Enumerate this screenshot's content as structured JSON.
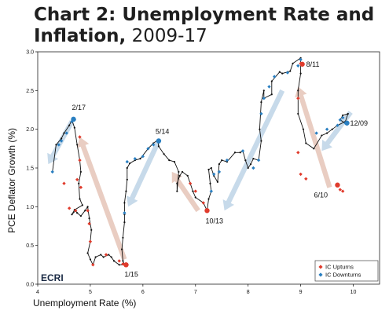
{
  "title_main": "Chart 2: Unemployment Rate and Inflation,",
  "title_years": " 2009-17",
  "chart_data": {
    "type": "line",
    "title": "Chart 2: Unemployment Rate and Inflation, 2009-17",
    "xlabel": "Unemployment Rate (%)",
    "ylabel": "PCE Deflator Growth (%)",
    "xlim": [
      4,
      10.5
    ],
    "ylim": [
      0,
      3
    ],
    "xticks": [
      "4",
      "5",
      "6",
      "7",
      "8",
      "9",
      "10"
    ],
    "yticks": [
      "0.0",
      "0.5",
      "1.0",
      "1.5",
      "2.0",
      "2.5",
      "3.0"
    ],
    "logo": "ECRI",
    "path": [
      [
        9.85,
        2.08
      ],
      [
        9.75,
        2.12
      ],
      [
        9.8,
        2.18
      ],
      [
        9.9,
        2.2
      ],
      [
        9.85,
        2.1
      ],
      [
        9.7,
        2.05
      ],
      [
        9.6,
        2.0
      ],
      [
        9.5,
        1.95
      ],
      [
        9.4,
        1.92
      ],
      [
        9.25,
        1.75
      ],
      [
        9.1,
        1.82
      ],
      [
        9.05,
        2.0
      ],
      [
        8.95,
        2.2
      ],
      [
        8.95,
        2.5
      ],
      [
        9.0,
        2.72
      ],
      [
        9.0,
        2.92
      ],
      [
        8.85,
        2.85
      ],
      [
        8.8,
        2.75
      ],
      [
        8.75,
        2.74
      ],
      [
        8.65,
        2.72
      ],
      [
        8.6,
        2.74
      ],
      [
        8.45,
        2.62
      ],
      [
        8.45,
        2.45
      ],
      [
        8.3,
        2.4
      ],
      [
        8.3,
        2.5
      ],
      [
        8.25,
        2.35
      ],
      [
        8.22,
        2.0
      ],
      [
        8.25,
        1.85
      ],
      [
        8.2,
        1.6
      ],
      [
        8.1,
        1.62
      ],
      [
        8.05,
        1.55
      ],
      [
        8.0,
        1.5
      ],
      [
        7.95,
        1.6
      ],
      [
        7.9,
        1.72
      ],
      [
        7.85,
        1.7
      ],
      [
        7.75,
        1.7
      ],
      [
        7.6,
        1.58
      ],
      [
        7.5,
        1.6
      ],
      [
        7.45,
        1.55
      ],
      [
        7.42,
        1.32
      ],
      [
        7.35,
        1.4
      ],
      [
        7.3,
        1.5
      ],
      [
        7.25,
        1.48
      ],
      [
        7.28,
        1.3
      ],
      [
        7.3,
        1.2
      ],
      [
        7.25,
        1.1
      ],
      [
        7.22,
        0.95
      ],
      [
        7.15,
        1.05
      ],
      [
        7.0,
        1.12
      ],
      [
        6.95,
        1.2
      ],
      [
        6.9,
        1.3
      ],
      [
        6.85,
        1.4
      ],
      [
        6.75,
        1.45
      ],
      [
        6.7,
        1.4
      ],
      [
        6.65,
        1.3
      ],
      [
        6.65,
        1.2
      ],
      [
        6.68,
        1.45
      ],
      [
        6.6,
        1.58
      ],
      [
        6.5,
        1.6
      ],
      [
        6.4,
        1.68
      ],
      [
        6.3,
        1.78
      ],
      [
        6.28,
        1.86
      ],
      [
        6.2,
        1.82
      ],
      [
        6.1,
        1.75
      ],
      [
        5.95,
        1.62
      ],
      [
        5.85,
        1.6
      ],
      [
        5.75,
        1.56
      ],
      [
        5.7,
        1.5
      ],
      [
        5.7,
        1.35
      ],
      [
        5.68,
        1.2
      ],
      [
        5.65,
        1.05
      ],
      [
        5.65,
        0.9
      ],
      [
        5.65,
        0.8
      ],
      [
        5.62,
        0.6
      ],
      [
        5.6,
        0.45
      ],
      [
        5.62,
        0.3
      ],
      [
        5.65,
        0.25
      ],
      [
        5.55,
        0.25
      ],
      [
        5.45,
        0.3
      ],
      [
        5.4,
        0.35
      ],
      [
        5.35,
        0.38
      ],
      [
        5.25,
        0.35
      ],
      [
        5.2,
        0.38
      ],
      [
        5.1,
        0.35
      ],
      [
        5.05,
        0.25
      ],
      [
        5.0,
        0.32
      ],
      [
        4.95,
        0.4
      ],
      [
        5.0,
        0.55
      ],
      [
        5.02,
        0.7
      ],
      [
        4.98,
        0.85
      ],
      [
        4.95,
        1.0
      ],
      [
        4.9,
        0.95
      ],
      [
        4.82,
        0.88
      ],
      [
        4.75,
        0.92
      ],
      [
        4.72,
        0.95
      ],
      [
        4.65,
        0.9
      ],
      [
        4.7,
        0.96
      ],
      [
        4.85,
        1.02
      ],
      [
        4.8,
        1.1
      ],
      [
        4.78,
        1.3
      ],
      [
        4.82,
        1.45
      ],
      [
        4.8,
        1.6
      ],
      [
        4.75,
        1.8
      ],
      [
        4.7,
        2.02
      ],
      [
        4.65,
        2.12
      ],
      [
        4.6,
        2.05
      ],
      [
        4.5,
        1.95
      ],
      [
        4.45,
        1.88
      ],
      [
        4.35,
        1.8
      ],
      [
        4.28,
        1.45
      ]
    ],
    "upturns": [
      [
        9.8,
        1.2
      ],
      [
        9.75,
        1.22
      ],
      [
        9.1,
        1.36
      ],
      [
        9.0,
        1.42
      ],
      [
        8.95,
        1.7
      ],
      [
        8.95,
        2.4
      ],
      [
        9.0,
        2.85
      ],
      [
        7.22,
        0.95
      ],
      [
        7.15,
        1.05
      ],
      [
        7.0,
        1.2
      ],
      [
        6.9,
        1.3
      ],
      [
        5.7,
        0.25
      ],
      [
        5.62,
        0.26
      ],
      [
        5.55,
        0.3
      ],
      [
        5.3,
        0.38
      ],
      [
        5.05,
        0.25
      ],
      [
        5.0,
        0.55
      ],
      [
        4.98,
        0.78
      ],
      [
        4.95,
        0.95
      ],
      [
        4.82,
        1.25
      ],
      [
        4.8,
        1.6
      ],
      [
        4.75,
        1.35
      ],
      [
        4.72,
        0.95
      ],
      [
        4.6,
        0.98
      ],
      [
        4.5,
        1.3
      ],
      [
        4.8,
        1.9
      ]
    ],
    "downturns": [
      [
        9.85,
        2.08
      ],
      [
        9.8,
        2.15
      ],
      [
        9.75,
        2.12
      ],
      [
        9.7,
        2.05
      ],
      [
        9.5,
        2.0
      ],
      [
        9.3,
        1.95
      ],
      [
        9.0,
        2.9
      ],
      [
        8.95,
        2.82
      ],
      [
        8.75,
        2.73
      ],
      [
        8.5,
        2.68
      ],
      [
        8.4,
        2.55
      ],
      [
        8.3,
        2.4
      ],
      [
        8.25,
        2.2
      ],
      [
        8.2,
        1.6
      ],
      [
        8.1,
        1.5
      ],
      [
        7.9,
        1.72
      ],
      [
        7.6,
        1.6
      ],
      [
        7.45,
        1.45
      ],
      [
        7.35,
        1.42
      ],
      [
        7.3,
        1.2
      ],
      [
        6.3,
        1.85
      ],
      [
        6.2,
        1.8
      ],
      [
        6.1,
        1.75
      ],
      [
        6.0,
        1.65
      ],
      [
        5.85,
        1.62
      ],
      [
        5.7,
        1.58
      ],
      [
        5.65,
        0.92
      ],
      [
        4.7,
        2.12
      ],
      [
        4.65,
        2.1
      ],
      [
        4.55,
        1.95
      ],
      [
        4.45,
        1.85
      ],
      [
        4.4,
        1.8
      ],
      [
        4.28,
        1.45
      ]
    ],
    "annotations": [
      {
        "label": "2/17",
        "x": 4.68,
        "y": 2.13
      },
      {
        "label": "5/14",
        "x": 6.3,
        "y": 1.85
      },
      {
        "label": "8/11",
        "x": 9.03,
        "y": 2.84
      },
      {
        "label": "12/09",
        "x": 9.88,
        "y": 2.08
      },
      {
        "label": "6/10",
        "x": 9.7,
        "y": 1.28
      },
      {
        "label": "10/13",
        "x": 7.22,
        "y": 0.95
      },
      {
        "label": "1/15",
        "x": 5.68,
        "y": 0.25
      }
    ],
    "trend_arrows": [
      {
        "kind": "up",
        "from": [
          5.65,
          0.32
        ],
        "to": [
          4.8,
          1.9
        ]
      },
      {
        "kind": "down",
        "from": [
          4.65,
          2.1
        ],
        "to": [
          4.2,
          1.55
        ]
      },
      {
        "kind": "down",
        "from": [
          6.3,
          1.85
        ],
        "to": [
          5.72,
          1.0
        ]
      },
      {
        "kind": "up",
        "from": [
          7.05,
          0.95
        ],
        "to": [
          6.55,
          1.45
        ]
      },
      {
        "kind": "down",
        "from": [
          8.65,
          2.5
        ],
        "to": [
          7.55,
          0.95
        ]
      },
      {
        "kind": "up",
        "from": [
          9.55,
          1.25
        ],
        "to": [
          8.95,
          2.55
        ]
      },
      {
        "kind": "down",
        "from": [
          9.95,
          2.22
        ],
        "to": [
          9.4,
          1.72
        ]
      }
    ],
    "legend": [
      {
        "label": "IC Upturns",
        "color": "#e03b2c",
        "shape": "diamond"
      },
      {
        "label": "IC Downturns",
        "color": "#2a7fc1",
        "shape": "diamond"
      }
    ],
    "legend_position": "bottom-right",
    "colors": {
      "upturn": "#e03b2c",
      "downturn": "#2a7fc1",
      "up_arrow": "#e9cdc2",
      "down_arrow": "#c7daea",
      "line": "#111111"
    }
  }
}
